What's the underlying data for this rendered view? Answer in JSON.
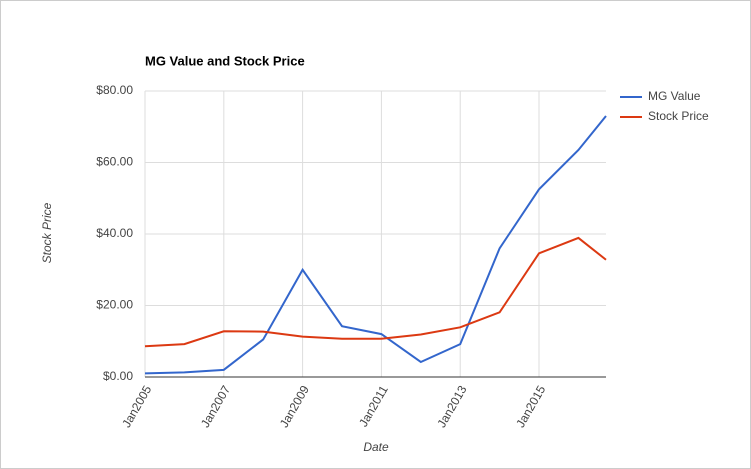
{
  "chart_data": {
    "type": "line",
    "title": "MG Value and Stock Price",
    "x_label": "Date",
    "y_label": "Stock Price",
    "x": [
      2005,
      2006,
      2007,
      2008,
      2009,
      2010,
      2011,
      2012,
      2013,
      2014,
      2015,
      2016,
      2016.7
    ],
    "series": [
      {
        "name": "MG Value",
        "color": "#3366cc",
        "values": [
          1,
          1.3,
          2,
          10.5,
          30,
          14.2,
          12,
          4.2,
          9.2,
          36,
          52.5,
          63.5,
          73
        ]
      },
      {
        "name": "Stock Price",
        "color": "#dc3912",
        "values": [
          8.6,
          9.2,
          12.8,
          12.7,
          11.3,
          10.7,
          10.7,
          11.9,
          13.9,
          18.1,
          34.6,
          38.9,
          32.8
        ]
      }
    ],
    "xlim": [
      2005,
      2016.7
    ],
    "xticks": [
      {
        "value": 2005,
        "label": "Jan2005"
      },
      {
        "value": 2007,
        "label": "Jan2007"
      },
      {
        "value": 2009,
        "label": "Jan2009"
      },
      {
        "value": 2011,
        "label": "Jan2011"
      },
      {
        "value": 2013,
        "label": "Jan2013"
      },
      {
        "value": 2015,
        "label": "Jan2015"
      }
    ],
    "ylim": [
      0,
      80
    ],
    "yticks": [
      {
        "value": 0,
        "label": "$0.00"
      },
      {
        "value": 20,
        "label": "$20.00"
      },
      {
        "value": 40,
        "label": "$40.00"
      },
      {
        "value": 60,
        "label": "$60.00"
      },
      {
        "value": 80,
        "label": "$80.00"
      }
    ],
    "grid": true,
    "legend": "right"
  }
}
